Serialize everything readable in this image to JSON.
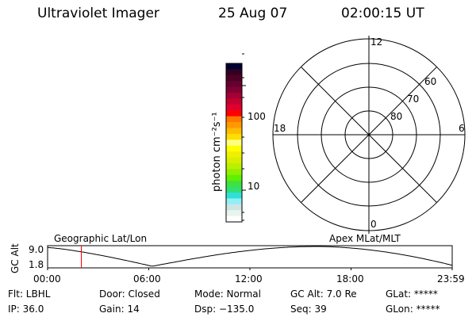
{
  "header": {
    "instrument": "Ultraviolet Imager",
    "date": "25 Aug 07",
    "time": "02:00:15 UT"
  },
  "colorbar": {
    "label": "photon cm⁻²s⁻¹",
    "ticks": [
      "100",
      "10"
    ],
    "colors": [
      "#000033",
      "#330022",
      "#4d0026",
      "#66002e",
      "#800033",
      "#a30033",
      "#c30030",
      "#e00030",
      "#ff0000",
      "#ff7700",
      "#ff9900",
      "#ffbb00",
      "#ffdd00",
      "#ffff80",
      "#ffff00",
      "#eef000",
      "#d8f000",
      "#bbf000",
      "#90f000",
      "#60f000",
      "#40e040",
      "#30e070",
      "#30e0d8",
      "#90f0f5",
      "#d0e4e4",
      "#e8f4ee",
      "#ffffff"
    ]
  },
  "polar": {
    "mlt_labels": [
      "12",
      "6",
      "0",
      "18"
    ],
    "lat_labels": [
      "80",
      "70",
      "60"
    ]
  },
  "timeline": {
    "left_label": "Geographic Lat/Lon",
    "right_label": "Apex MLat/MLT",
    "y_axis_label": "GC Alt",
    "y_ticks": [
      "9.0",
      "1.8"
    ],
    "x_ticks": [
      "00:00",
      "06:00",
      "12:00",
      "18:00",
      "23:59"
    ],
    "current_time_hours": 2.0,
    "marker_color": "#ff0000"
  },
  "info": [
    [
      "Flt: LBHL",
      "Door: Closed",
      "Mode: Normal",
      "GC Alt: 7.0 Re",
      "GLat: *****"
    ],
    [
      "IP: 36.0",
      "Gain: 14",
      "Dsp: −135.0",
      "Seq: 39",
      "GLon: *****"
    ]
  ]
}
